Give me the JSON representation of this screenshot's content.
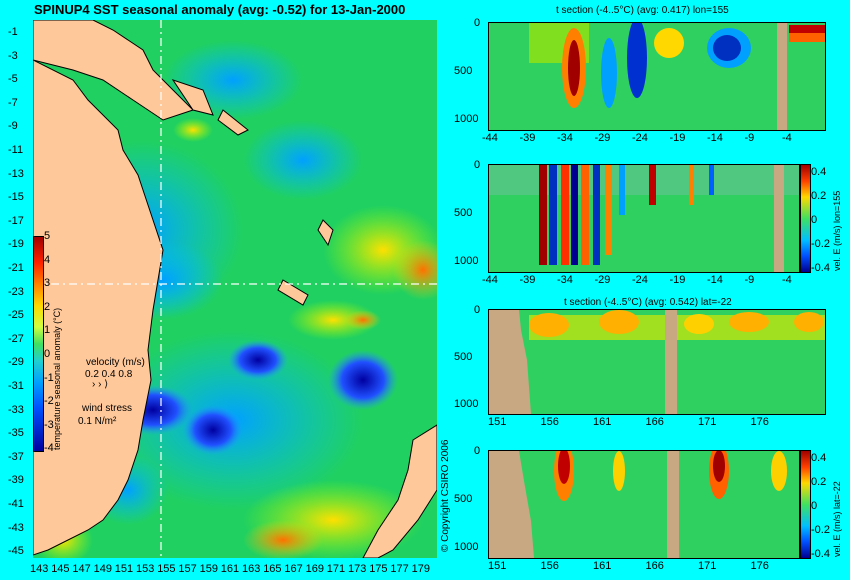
{
  "main_title": "SPINUP4 SST seasonal anomaly (avg: -0.52) for 13-Jan-2000",
  "map": {
    "lat_labels": [
      "-1",
      "-3",
      "-5",
      "-7",
      "-9",
      "-11",
      "-13",
      "-15",
      "-17",
      "-19",
      "-21",
      "-23",
      "-25",
      "-27",
      "-29",
      "-31",
      "-33",
      "-35",
      "-37",
      "-39",
      "-41",
      "-43",
      "-45"
    ],
    "lon_labels": [
      "143",
      "145",
      "147",
      "149",
      "151",
      "153",
      "155",
      "157",
      "159",
      "161",
      "163",
      "165",
      "167",
      "169",
      "171",
      "173",
      "175",
      "177",
      "179"
    ],
    "colorbar": {
      "ticks": [
        "5",
        "4",
        "3",
        "2",
        "1",
        "0",
        "-1",
        "-2",
        "-3",
        "-4"
      ],
      "label": "temperature seasonal anomaly (°C)"
    },
    "velocity_legend": {
      "title": "velocity (m/s)",
      "values": "0.2 0.4 0.8"
    },
    "wind_legend": {
      "title": "wind stress",
      "value": "0.1 N/m²"
    },
    "crosshair": {
      "lon": 155,
      "lat": -22
    }
  },
  "copyright": "© Copyright CSIRO 2006",
  "sections": [
    {
      "title": "t section (-4..5°C) (avg: 0.417) lon=155",
      "x_ticks": [
        "-44",
        "-39",
        "-34",
        "-29",
        "-24",
        "-19",
        "-14",
        "-9",
        "-4"
      ],
      "y_ticks": [
        "0",
        "500",
        "1000"
      ]
    },
    {
      "title": "",
      "x_ticks": [
        "-44",
        "-39",
        "-34",
        "-29",
        "-24",
        "-19",
        "-14",
        "-9",
        "-4"
      ],
      "y_ticks": [
        "0",
        "500",
        "1000"
      ],
      "colorbar_ticks": [
        "0.4",
        "0.2",
        "0",
        "-0.2",
        "-0.4"
      ],
      "colorbar_label": "vel. E (m/s) lon=155"
    },
    {
      "title": "t section (-4..5°C) (avg: 0.542) lat=-22",
      "x_ticks": [
        "151",
        "156",
        "161",
        "166",
        "171",
        "176"
      ],
      "y_ticks": [
        "0",
        "500",
        "1000"
      ]
    },
    {
      "title": "",
      "x_ticks": [
        "151",
        "156",
        "161",
        "166",
        "171",
        "176"
      ],
      "y_ticks": [
        "0",
        "500",
        "1000"
      ],
      "colorbar_ticks": [
        "0.4",
        "0.2",
        "0",
        "-0.2",
        "-0.4"
      ],
      "colorbar_label": "vel. E (m/s) lat=-22"
    }
  ]
}
